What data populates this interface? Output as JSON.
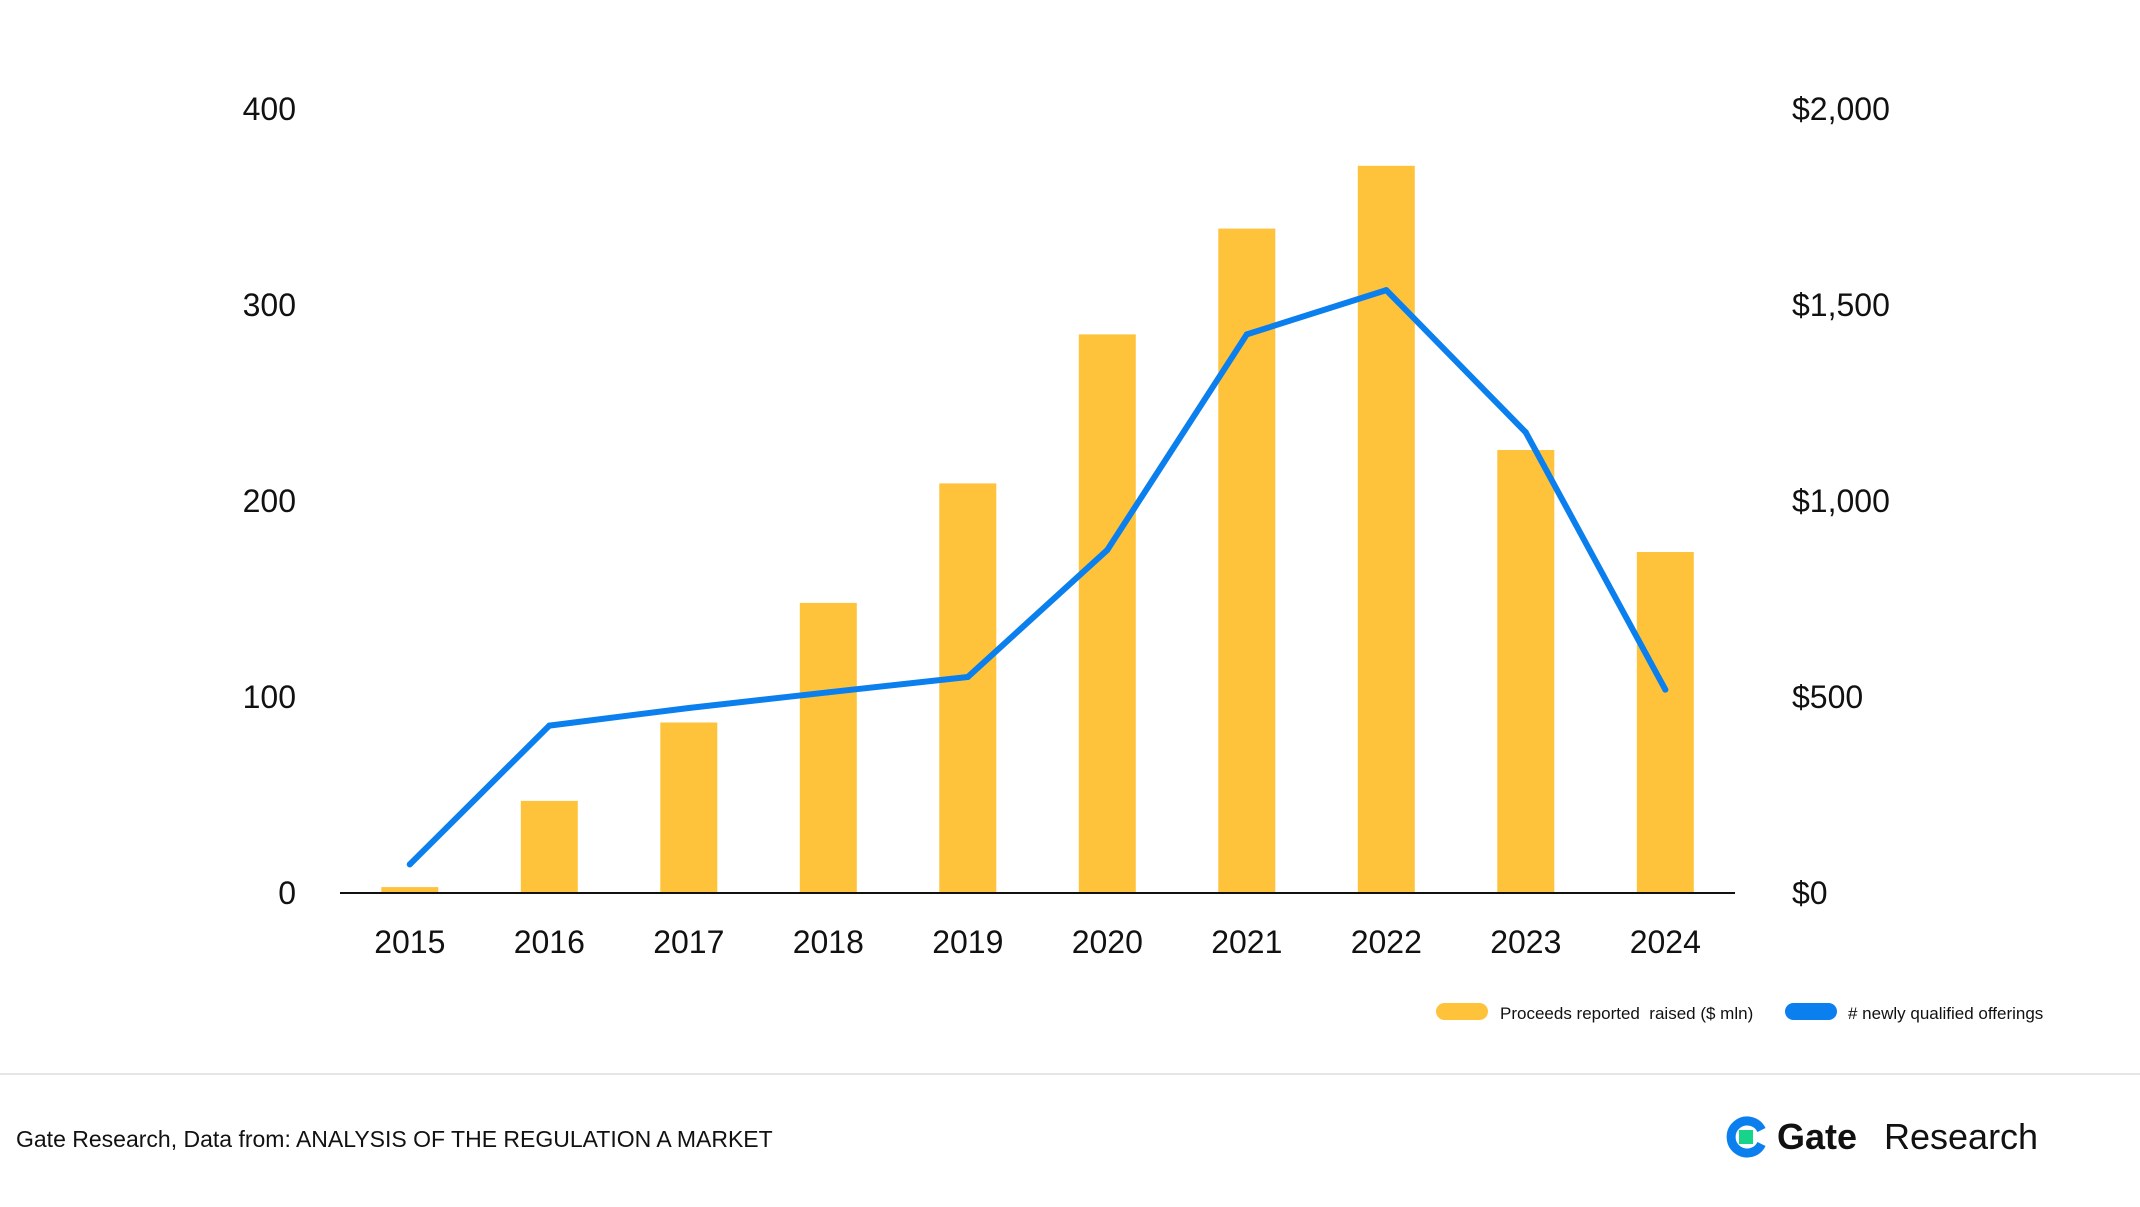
{
  "chart_data": {
    "type": "bar+line",
    "categories": [
      "2015",
      "2016",
      "2017",
      "2018",
      "2019",
      "2020",
      "2021",
      "2022",
      "2023",
      "2024"
    ],
    "series": [
      {
        "name": "Proceeds reported  raised ($ mln)",
        "type": "bar",
        "axis": "left",
        "color": "#FEC33A",
        "values": [
          3,
          47,
          87,
          148,
          209,
          285,
          339,
          371,
          226,
          174
        ]
      },
      {
        "name": "# newly qualified offerings",
        "type": "line",
        "axis": "right",
        "color": "#0B7FEE",
        "values": [
          73,
          427,
          472,
          512,
          551,
          875,
          1425,
          1538,
          1175,
          519
        ]
      }
    ],
    "left_axis": {
      "ticks": [
        0,
        100,
        200,
        300,
        400
      ],
      "tick_labels": [
        "0",
        "100",
        "200",
        "300",
        "400"
      ],
      "ylim": [
        0,
        400
      ]
    },
    "right_axis": {
      "ticks": [
        0,
        500,
        1000,
        1500,
        2000
      ],
      "tick_labels": [
        "$0",
        "$500",
        "$1,000",
        "$1,500",
        "$2,000"
      ],
      "ylim": [
        0,
        2000
      ]
    },
    "grid": false,
    "legend_position": "bottom-right"
  },
  "footer": {
    "source_text": "Gate Research, Data from: ANALYSIS OF THE REGULATION A MARKET",
    "brand_gate": "Gate",
    "brand_research": "Research",
    "brand_color": "#0B7FEE",
    "brand_accent": "#18D38A"
  }
}
